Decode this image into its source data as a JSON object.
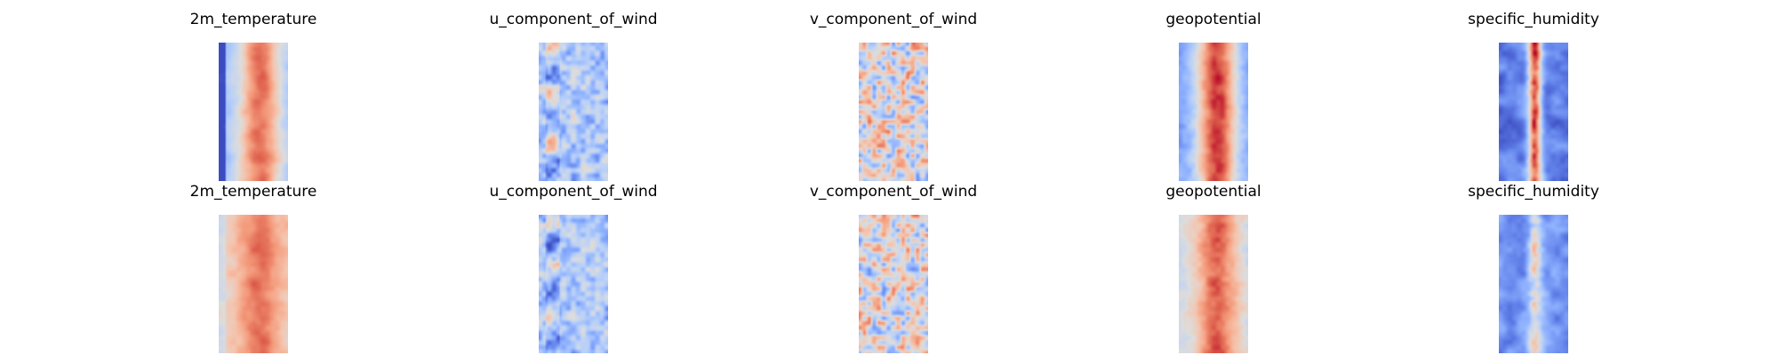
{
  "chart_data": [
    {
      "type": "heatmap",
      "title": "2m_temperature",
      "colormap": "coolwarm",
      "row": 1,
      "column": 1
    },
    {
      "type": "heatmap",
      "title": "u_component_of_wind",
      "colormap": "coolwarm",
      "row": 1,
      "column": 2
    },
    {
      "type": "heatmap",
      "title": "v_component_of_wind",
      "colormap": "coolwarm",
      "row": 1,
      "column": 3
    },
    {
      "type": "heatmap",
      "title": "geopotential",
      "colormap": "coolwarm",
      "row": 1,
      "column": 4
    },
    {
      "type": "heatmap",
      "title": "specific_humidity",
      "colormap": "coolwarm",
      "row": 1,
      "column": 5
    },
    {
      "type": "heatmap",
      "title": "2m_temperature",
      "colormap": "coolwarm",
      "row": 2,
      "column": 1
    },
    {
      "type": "heatmap",
      "title": "u_component_of_wind",
      "colormap": "coolwarm",
      "row": 2,
      "column": 2
    },
    {
      "type": "heatmap",
      "title": "v_component_of_wind",
      "colormap": "coolwarm",
      "row": 2,
      "column": 3
    },
    {
      "type": "heatmap",
      "title": "geopotential",
      "colormap": "coolwarm",
      "row": 2,
      "column": 4
    },
    {
      "type": "heatmap",
      "title": "specific_humidity",
      "colormap": "coolwarm",
      "row": 2,
      "column": 5
    }
  ]
}
